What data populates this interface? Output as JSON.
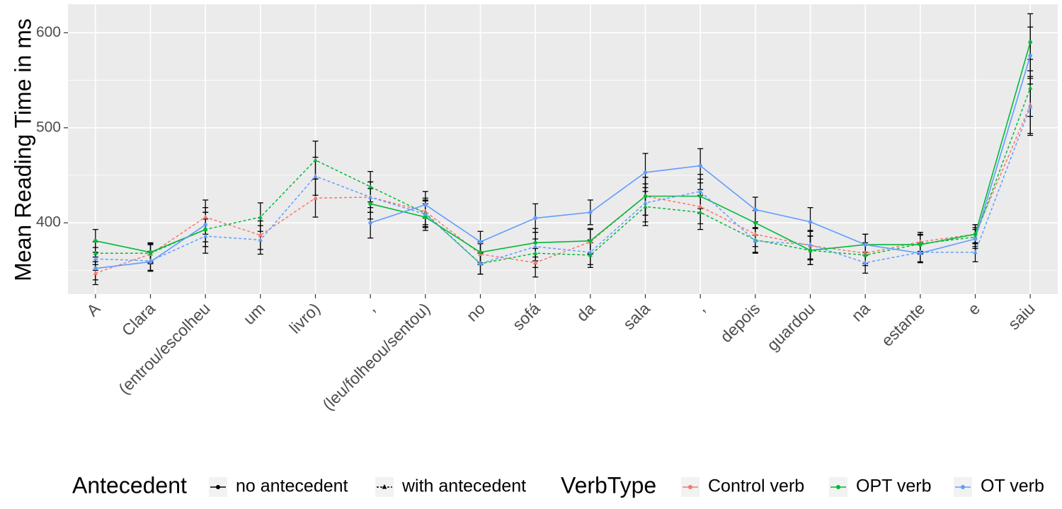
{
  "chart_data": {
    "type": "line",
    "title": "",
    "xlabel": "",
    "ylabel": "Mean Reading Time in ms",
    "ylim": [
      325,
      630
    ],
    "y_ticks": [
      400,
      500,
      600
    ],
    "grid": true,
    "legend_position": "bottom",
    "categories": [
      "A",
      "Clara",
      "(entrou/escolheu",
      "um",
      "livro)",
      ",",
      "(leu/folheou/sentou)",
      "no",
      "sofá",
      "da",
      "sala",
      ",",
      "depois",
      "guardou",
      "na",
      "estante",
      "e",
      "saiu"
    ],
    "colors": {
      "Control verb": "#F8766D",
      "OPT verb": "#00BA38",
      "OT verb": "#619CFF"
    },
    "legend": {
      "antecedent_title": "Antecedent",
      "antecedent_items": [
        "no antecedent",
        "with antecedent"
      ],
      "verbtype_title": "VerbType",
      "verbtype_items": [
        "Control verb",
        "OPT verb",
        "OT verb"
      ]
    },
    "series": [
      {
        "name": "Control verb",
        "verbtype": "Control verb",
        "antecedent": "with antecedent",
        "values": [
          347,
          367,
          406,
          387,
          426,
          427,
          412,
          367,
          358,
          380,
          428,
          417,
          388,
          376,
          368,
          380,
          388,
          524
        ]
      },
      {
        "name": "OPT verb",
        "verbtype": "OPT verb",
        "antecedent": "no antecedent",
        "values": [
          381,
          369,
          393,
          null,
          null,
          420,
          406,
          369,
          379,
          381,
          428,
          428,
          400,
          371,
          377,
          377,
          388,
          590
        ]
      },
      {
        "name": "OPT verb",
        "verbtype": "OPT verb",
        "antecedent": "with antecedent",
        "values": [
          368,
          368,
          393,
          406,
          466,
          438,
          410,
          357,
          368,
          366,
          417,
          411,
          382,
          371,
          366,
          378,
          385,
          542
        ]
      },
      {
        "name": "OT verb",
        "verbtype": "OT verb",
        "antecedent": "no antecedent",
        "values": [
          352,
          359,
          398,
          null,
          null,
          400,
          419,
          380,
          405,
          411,
          453,
          460,
          414,
          401,
          377,
          368,
          383,
          576
        ]
      },
      {
        "name": "OT verb",
        "verbtype": "OT verb",
        "antecedent": "with antecedent",
        "values": [
          362,
          360,
          386,
          382,
          449,
          427,
          409,
          357,
          375,
          369,
          421,
          433,
          381,
          377,
          358,
          369,
          369,
          522
        ]
      }
    ],
    "error_bar_halfwidth": [
      12,
      10,
      18,
      15,
      20,
      16,
      14,
      11,
      15,
      13,
      20,
      18,
      13,
      15,
      11,
      10,
      10,
      30
    ]
  }
}
